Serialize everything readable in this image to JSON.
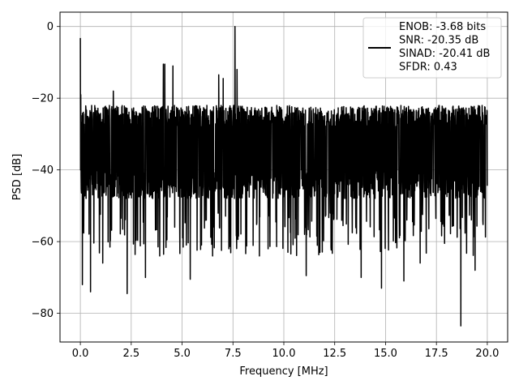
{
  "chart_data": {
    "type": "line",
    "title": "",
    "xlabel": "Frequency [MHz]",
    "ylabel": "PSD [dB]",
    "xlim": [
      -1,
      21
    ],
    "ylim": [
      -88,
      4
    ],
    "x_ticks": [
      0.0,
      2.5,
      5.0,
      7.5,
      10.0,
      12.5,
      15.0,
      17.5,
      20.0
    ],
    "x_tick_labels": [
      "0.0",
      "2.5",
      "5.0",
      "7.5",
      "10.0",
      "12.5",
      "15.0",
      "17.5",
      "20.0"
    ],
    "y_ticks": [
      0,
      -20,
      -40,
      -60,
      -80
    ],
    "y_tick_labels": [
      "0",
      "−20",
      "−40",
      "−60",
      "−80"
    ],
    "grid": true,
    "legend_position": "top-right",
    "legend_lines": [
      "ENOB: -3.68 bits",
      "SNR: -20.35 dB",
      "SINAD: -20.41 dB",
      "SFDR: 0.43"
    ],
    "series": [
      {
        "color": "#000000",
        "x_range": [
          0,
          20
        ],
        "noise_band_db": [
          -48,
          -22
        ],
        "noise_floor_avg_db": -35,
        "spikes": [
          {
            "x": 0.0,
            "y": -3.2
          },
          {
            "x": 0.02,
            "y": -19.0
          },
          {
            "x": 1.62,
            "y": -18.0
          },
          {
            "x": 4.08,
            "y": -10.5
          },
          {
            "x": 4.15,
            "y": -10.5
          },
          {
            "x": 4.55,
            "y": -11.0
          },
          {
            "x": 6.8,
            "y": -13.5
          },
          {
            "x": 7.02,
            "y": -14.5
          },
          {
            "x": 7.6,
            "y": 0.0
          },
          {
            "x": 7.7,
            "y": -12.0
          }
        ],
        "dips": [
          {
            "x": 0.1,
            "y": -72
          },
          {
            "x": 0.5,
            "y": -74
          },
          {
            "x": 1.1,
            "y": -66
          },
          {
            "x": 2.3,
            "y": -74.5
          },
          {
            "x": 3.2,
            "y": -70
          },
          {
            "x": 3.9,
            "y": -64
          },
          {
            "x": 5.4,
            "y": -70.5
          },
          {
            "x": 6.5,
            "y": -64
          },
          {
            "x": 7.3,
            "y": -62
          },
          {
            "x": 8.8,
            "y": -64
          },
          {
            "x": 10.2,
            "y": -63
          },
          {
            "x": 11.1,
            "y": -69.5
          },
          {
            "x": 13.8,
            "y": -70
          },
          {
            "x": 14.8,
            "y": -73
          },
          {
            "x": 15.9,
            "y": -71
          },
          {
            "x": 16.7,
            "y": -66
          },
          {
            "x": 18.7,
            "y": -83.5
          },
          {
            "x": 19.4,
            "y": -68
          }
        ]
      }
    ]
  }
}
